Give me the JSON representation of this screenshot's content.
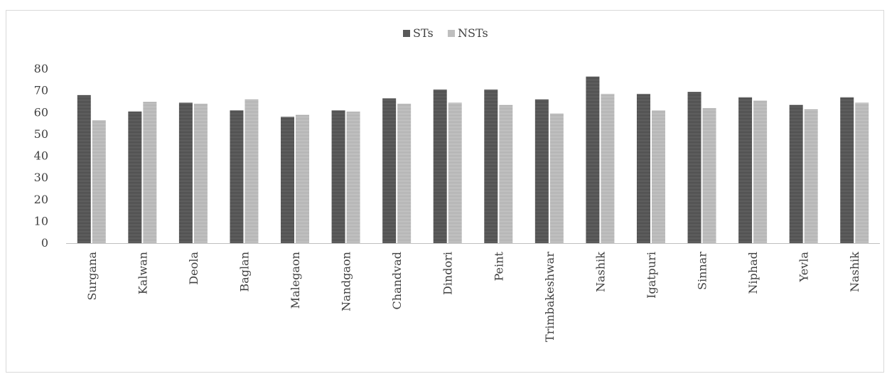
{
  "chart_data": {
    "type": "bar",
    "categories": [
      "Surgana",
      "Kalwan",
      "Deola",
      "Baglan",
      "Malegaon",
      "Nandgaon",
      "Chandvad",
      "Dindori",
      "Peint",
      "Trimbakeshwar",
      "Nashik",
      "Igatpuri",
      "Sinnar",
      "Niphad",
      "Yevla",
      "Nashik"
    ],
    "series": [
      {
        "name": "STs",
        "color": "#595959",
        "values": [
          68,
          60.5,
          64.5,
          61,
          58,
          61,
          66.5,
          70.5,
          70.5,
          66,
          76.5,
          68.5,
          69.5,
          67,
          63.5,
          67
        ]
      },
      {
        "name": "NSTs",
        "color": "#bfbfbf",
        "values": [
          56.5,
          65,
          64,
          66,
          59,
          60.5,
          64,
          64.5,
          63.5,
          59.5,
          68.5,
          61,
          62,
          65.5,
          61.5,
          64.5
        ]
      }
    ],
    "ylim": [
      0,
      80
    ],
    "yticks": [
      0,
      10,
      20,
      30,
      40,
      50,
      60,
      70,
      80
    ],
    "legend_position": "top-center",
    "grid": false
  }
}
